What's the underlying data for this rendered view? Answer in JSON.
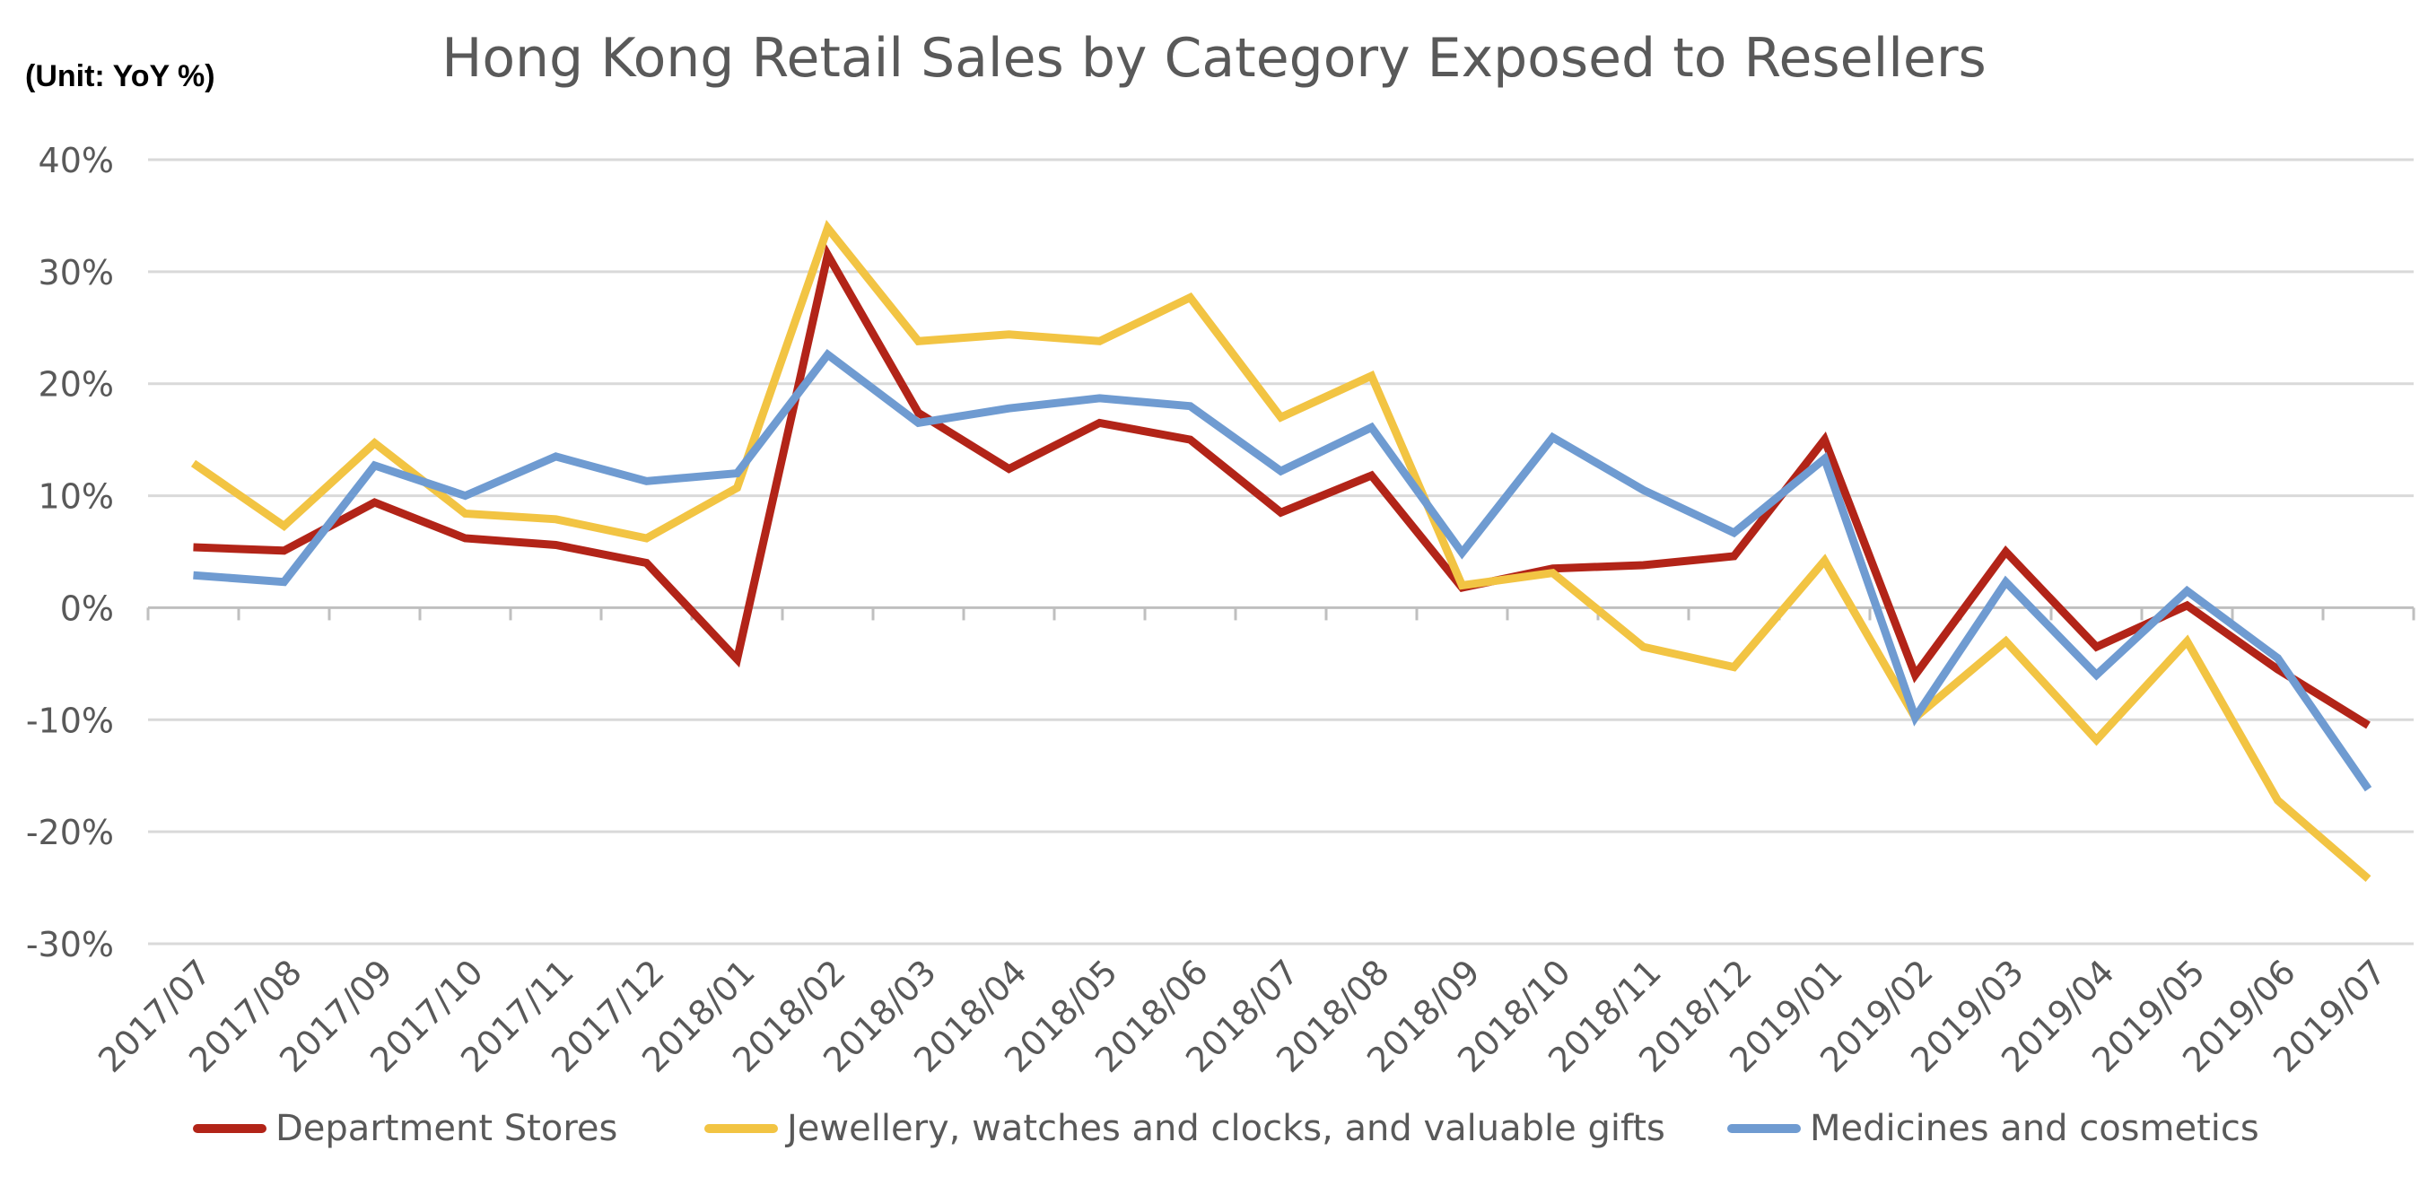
{
  "chart_data": {
    "type": "line",
    "title": "Hong Kong Retail Sales by Category Exposed to Resellers",
    "unit_label": "(Unit: YoY %)",
    "xlabel": "",
    "ylabel": "",
    "ylim": [
      -30,
      40
    ],
    "yticks": [
      40,
      30,
      20,
      10,
      0,
      -10,
      -20,
      -30
    ],
    "ytick_labels": [
      "40%",
      "30%",
      "20%",
      "10%",
      "0%",
      "-10%",
      "-20%",
      "-30%"
    ],
    "grid": true,
    "legend_position": "bottom",
    "categories": [
      "2017/07",
      "2017/08",
      "2017/09",
      "2017/10",
      "2017/11",
      "2017/12",
      "2018/01",
      "2018/02",
      "2018/03",
      "2018/04",
      "2018/05",
      "2018/06",
      "2018/07",
      "2018/08",
      "2018/09",
      "2018/10",
      "2018/11",
      "2018/12",
      "2019/01",
      "2019/02",
      "2019/03",
      "2019/04",
      "2019/05",
      "2019/06",
      "2019/07"
    ],
    "series": [
      {
        "name": "Department Stores",
        "color": "#B22418",
        "values": [
          5.4,
          5.1,
          9.4,
          6.2,
          5.6,
          4.0,
          -4.6,
          31.5,
          17.4,
          12.4,
          16.5,
          15.0,
          8.5,
          11.8,
          1.8,
          3.5,
          3.8,
          4.6,
          15.0,
          -6.0,
          5.0,
          -3.5,
          0.2,
          -5.5,
          -10.5
        ]
      },
      {
        "name": "Jewellery, watches and clocks, and valuable gifts",
        "color": "#F2C443",
        "values": [
          12.9,
          7.3,
          14.7,
          8.4,
          7.9,
          6.2,
          10.7,
          33.9,
          23.8,
          24.4,
          23.8,
          27.7,
          17.0,
          20.7,
          2.0,
          3.1,
          -3.5,
          -5.3,
          4.2,
          -9.8,
          -3.0,
          -11.8,
          -3.0,
          -17.2,
          -24.2
        ]
      },
      {
        "name": "Medicines and cosmetics",
        "color": "#6F9BD1",
        "values": [
          2.9,
          2.3,
          12.7,
          10.0,
          13.5,
          11.3,
          12.0,
          22.6,
          16.5,
          17.8,
          18.7,
          18.0,
          12.2,
          16.1,
          4.9,
          15.2,
          10.5,
          6.7,
          13.3,
          -9.8,
          2.3,
          -6.0,
          1.5,
          -4.5,
          -16.2
        ]
      }
    ]
  }
}
